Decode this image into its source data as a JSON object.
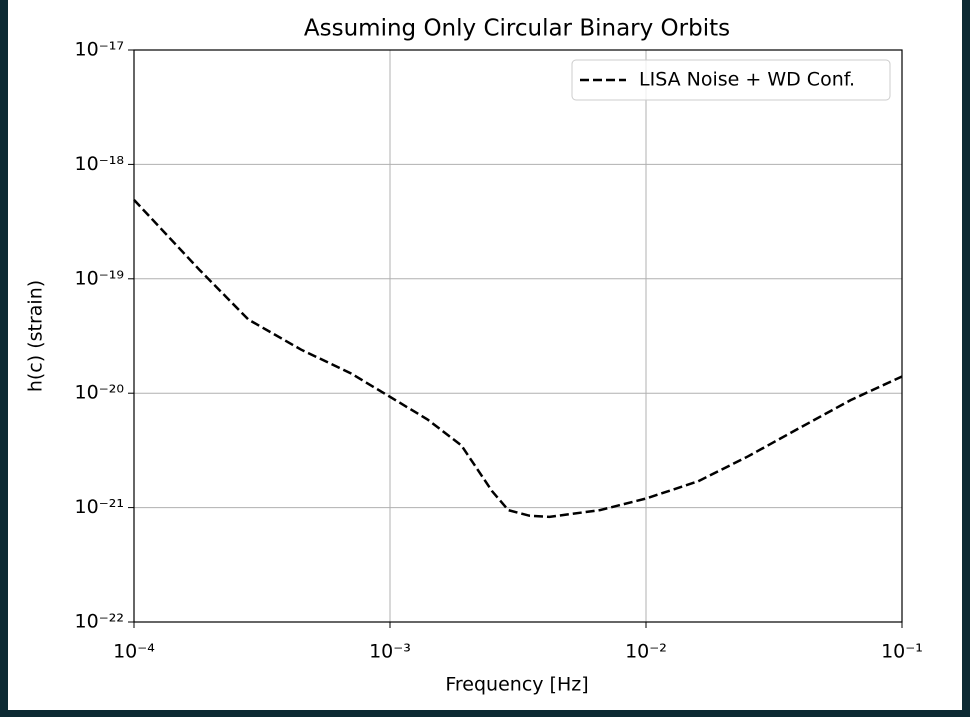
{
  "chart_data": {
    "type": "line",
    "title": "Assuming Only Circular Binary Orbits",
    "x_label": "Frequency [Hz]",
    "y_label": "h(c) (strain)",
    "x_scale": "log",
    "y_scale": "log",
    "grid": true,
    "legend": "upper right",
    "xlim": [
      0.0001,
      0.1
    ],
    "ylim": [
      1e-22,
      1e-17
    ],
    "xticks": [
      {
        "value": 0.0001,
        "label": "10⁻⁴"
      },
      {
        "value": 0.001,
        "label": "10⁻³"
      },
      {
        "value": 0.01,
        "label": "10⁻²"
      },
      {
        "value": 0.1,
        "label": "10⁻¹"
      }
    ],
    "yticks": [
      {
        "value": 1e-22,
        "label": "10⁻²²"
      },
      {
        "value": 1e-21,
        "label": "10⁻²¹"
      },
      {
        "value": 1e-20,
        "label": "10⁻²⁰"
      },
      {
        "value": 1e-19,
        "label": "10⁻¹⁹"
      },
      {
        "value": 1e-18,
        "label": "10⁻¹⁸"
      },
      {
        "value": 1e-17,
        "label": "10⁻¹⁷"
      }
    ],
    "x": [
      0.0001,
      0.00018,
      0.00028,
      0.00045,
      0.0007,
      0.001,
      0.0014,
      0.0019,
      0.0025,
      0.0029,
      0.0035,
      0.0042,
      0.0066,
      0.01,
      0.016,
      0.025,
      0.04,
      0.063,
      0.1
    ],
    "series": [
      {
        "name": "LISA Noise + WD Conf.",
        "color": "#000000",
        "dash": "dashed",
        "values": [
          4.9e-19,
          1.2e-19,
          4.4e-20,
          2.4e-20,
          1.5e-20,
          9.3e-21,
          5.9e-21,
          3.5e-21,
          1.4e-21,
          9.5e-22,
          8.5e-22,
          8.3e-22,
          9.5e-22,
          1.2e-21,
          1.7e-21,
          2.8e-21,
          5e-21,
          8.7e-21,
          1.4e-20
        ]
      }
    ]
  }
}
